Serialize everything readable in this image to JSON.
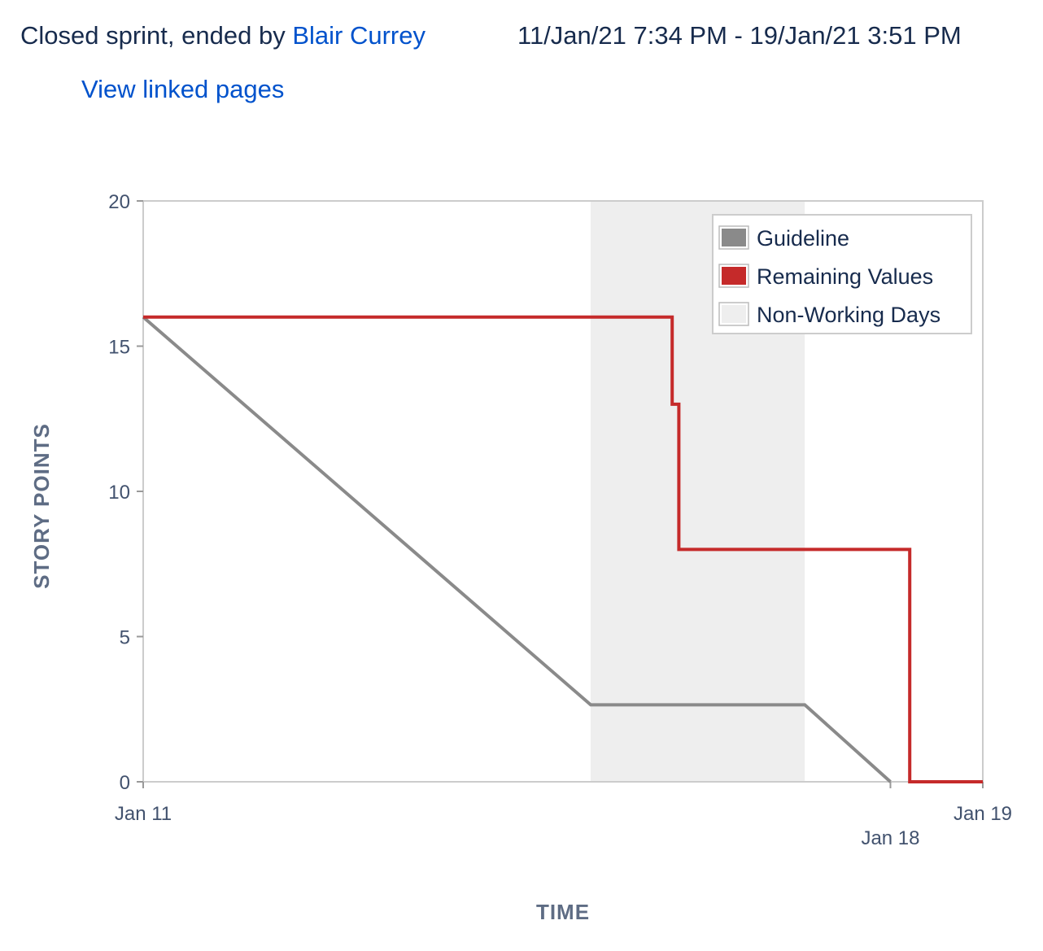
{
  "sprint": {
    "status_text": "Closed sprint, ended by",
    "ended_by": "Blair Currey",
    "date_range": "11/Jan/21 7:34 PM - 19/Jan/21 3:51 PM",
    "linked_pages_label": "View linked pages"
  },
  "colors": {
    "guideline": "#8a8a8a",
    "remaining": "#c52a2a",
    "non_working": "#eeeeee",
    "link": "#0052cc"
  },
  "chart_data": {
    "type": "line",
    "title": "",
    "xlabel": "TIME",
    "ylabel": "STORY POINTS",
    "ylim": [
      0,
      20
    ],
    "xlim": [
      "Jan 11",
      "Jan 19"
    ],
    "x_ticks": [
      "Jan 11",
      "Jan 18",
      "Jan 19"
    ],
    "y_ticks": [
      0,
      5,
      10,
      15,
      20
    ],
    "grid": false,
    "legend_position": "top-right",
    "legend": [
      "Guideline",
      "Remaining Values",
      "Non-Working Days"
    ],
    "non_working_days": {
      "name": "Non-Working Days",
      "start_day": 5.33,
      "end_day": 7.88
    },
    "series": [
      {
        "name": "Guideline",
        "points": [
          [
            0,
            16
          ],
          [
            5.33,
            2.65
          ],
          [
            7.88,
            2.65
          ],
          [
            8.9,
            0
          ]
        ]
      },
      {
        "name": "Remaining Values",
        "points": [
          [
            0,
            16
          ],
          [
            6.3,
            16
          ],
          [
            6.3,
            13
          ],
          [
            6.38,
            13
          ],
          [
            6.38,
            8
          ],
          [
            9.13,
            8
          ],
          [
            9.13,
            0
          ],
          [
            10,
            0
          ]
        ]
      }
    ]
  }
}
